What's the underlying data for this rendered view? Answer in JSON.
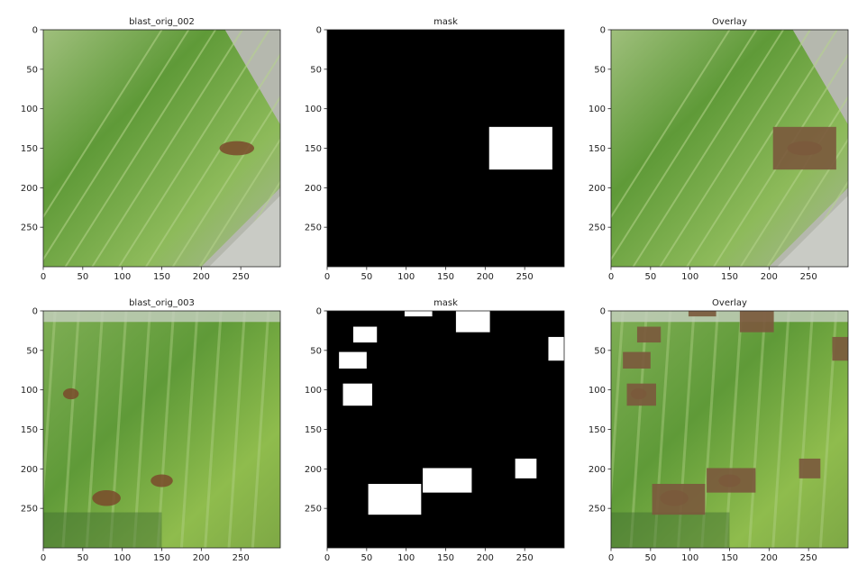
{
  "chart_data": [
    {
      "type": "image",
      "title": "blast_orig_002",
      "kind": "leaf-photo",
      "variant": 1,
      "xlim": [
        0,
        300
      ],
      "ylim": [
        0,
        300
      ],
      "x_ticks": [
        0,
        50,
        100,
        150,
        200,
        250
      ],
      "y_ticks": [
        0,
        50,
        100,
        150,
        200,
        250
      ],
      "lesions": [
        {
          "x": 245,
          "y": 150,
          "rx": 22,
          "ry": 9
        }
      ],
      "boxes": []
    },
    {
      "type": "image",
      "title": "mask",
      "kind": "mask",
      "xlim": [
        0,
        300
      ],
      "ylim": [
        0,
        300
      ],
      "x_ticks": [
        0,
        50,
        100,
        150,
        200,
        250
      ],
      "y_ticks": [
        0,
        50,
        100,
        150,
        200,
        250
      ],
      "boxes": [
        {
          "x0": 205,
          "y0": 123,
          "x1": 285,
          "y1": 177
        }
      ]
    },
    {
      "type": "image",
      "title": "Overlay",
      "kind": "overlay",
      "variant": 1,
      "xlim": [
        0,
        300
      ],
      "ylim": [
        0,
        300
      ],
      "x_ticks": [
        0,
        50,
        100,
        150,
        200,
        250
      ],
      "y_ticks": [
        0,
        50,
        100,
        150,
        200,
        250
      ],
      "lesions": [
        {
          "x": 245,
          "y": 150,
          "rx": 22,
          "ry": 9
        }
      ],
      "boxes": [
        {
          "x0": 205,
          "y0": 123,
          "x1": 285,
          "y1": 177
        }
      ]
    },
    {
      "type": "image",
      "title": "blast_orig_003",
      "kind": "leaf-photo",
      "variant": 2,
      "xlim": [
        0,
        300
      ],
      "ylim": [
        0,
        300
      ],
      "x_ticks": [
        0,
        50,
        100,
        150,
        200,
        250
      ],
      "y_ticks": [
        0,
        50,
        100,
        150,
        200,
        250
      ],
      "lesions": [
        {
          "x": 80,
          "y": 237,
          "rx": 18,
          "ry": 10
        },
        {
          "x": 150,
          "y": 215,
          "rx": 14,
          "ry": 8
        },
        {
          "x": 35,
          "y": 105,
          "rx": 10,
          "ry": 7
        }
      ],
      "boxes": []
    },
    {
      "type": "image",
      "title": "mask",
      "kind": "mask",
      "xlim": [
        0,
        300
      ],
      "ylim": [
        0,
        300
      ],
      "x_ticks": [
        0,
        50,
        100,
        150,
        200,
        250
      ],
      "y_ticks": [
        0,
        50,
        100,
        150,
        200,
        250
      ],
      "boxes": [
        {
          "x0": 98,
          "y0": 0,
          "x1": 133,
          "y1": 7
        },
        {
          "x0": 163,
          "y0": 0,
          "x1": 206,
          "y1": 27
        },
        {
          "x0": 33,
          "y0": 20,
          "x1": 63,
          "y1": 40
        },
        {
          "x0": 15,
          "y0": 52,
          "x1": 50,
          "y1": 73
        },
        {
          "x0": 280,
          "y0": 33,
          "x1": 300,
          "y1": 63
        },
        {
          "x0": 20,
          "y0": 92,
          "x1": 57,
          "y1": 120
        },
        {
          "x0": 52,
          "y0": 219,
          "x1": 119,
          "y1": 258
        },
        {
          "x0": 121,
          "y0": 199,
          "x1": 183,
          "y1": 230
        },
        {
          "x0": 238,
          "y0": 187,
          "x1": 265,
          "y1": 212
        }
      ]
    },
    {
      "type": "image",
      "title": "Overlay",
      "kind": "overlay",
      "variant": 2,
      "xlim": [
        0,
        300
      ],
      "ylim": [
        0,
        300
      ],
      "x_ticks": [
        0,
        50,
        100,
        150,
        200,
        250
      ],
      "y_ticks": [
        0,
        50,
        100,
        150,
        200,
        250
      ],
      "lesions": [
        {
          "x": 80,
          "y": 237,
          "rx": 18,
          "ry": 10
        },
        {
          "x": 150,
          "y": 215,
          "rx": 14,
          "ry": 8
        },
        {
          "x": 35,
          "y": 105,
          "rx": 10,
          "ry": 7
        }
      ],
      "boxes": [
        {
          "x0": 98,
          "y0": 0,
          "x1": 133,
          "y1": 7
        },
        {
          "x0": 163,
          "y0": 0,
          "x1": 206,
          "y1": 27
        },
        {
          "x0": 33,
          "y0": 20,
          "x1": 63,
          "y1": 40
        },
        {
          "x0": 15,
          "y0": 52,
          "x1": 50,
          "y1": 73
        },
        {
          "x0": 280,
          "y0": 33,
          "x1": 300,
          "y1": 63
        },
        {
          "x0": 20,
          "y0": 92,
          "x1": 57,
          "y1": 120
        },
        {
          "x0": 52,
          "y0": 219,
          "x1": 119,
          "y1": 258
        },
        {
          "x0": 121,
          "y0": 199,
          "x1": 183,
          "y1": 230
        },
        {
          "x0": 238,
          "y0": 187,
          "x1": 265,
          "y1": 212
        }
      ]
    }
  ],
  "colors": {
    "leaf_light": "#8dba5a",
    "leaf_dark": "#5f9a38",
    "leaf_vein": "#b6d48c",
    "background_gray": "#b5b8ae",
    "lesion": "#7a4a2c",
    "overlay_box": "#7b5a3d",
    "mask_bg": "#000000",
    "mask_box": "#ffffff",
    "axis": "#222222"
  }
}
